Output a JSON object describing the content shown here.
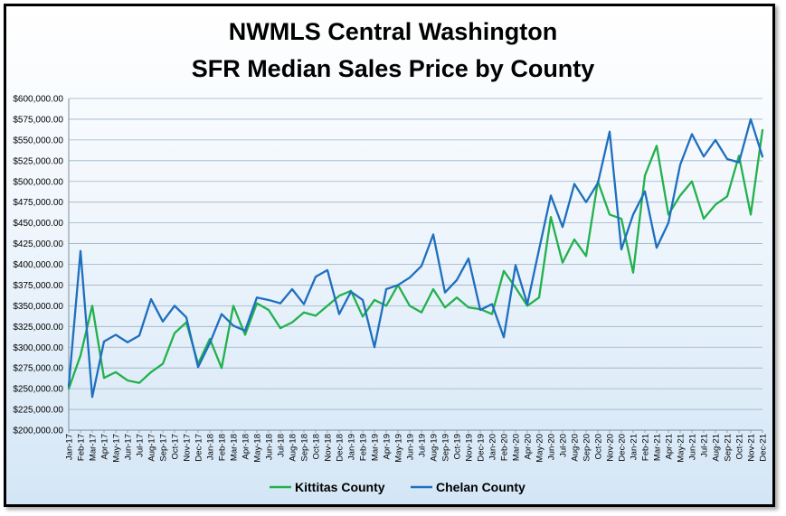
{
  "chart_data": {
    "type": "line",
    "title_lines": [
      "NWMLS Central Washington",
      "SFR Median Sales Price by County"
    ],
    "xlabel": "",
    "ylabel": "",
    "ylim": [
      200000,
      600000
    ],
    "ytick_step": 25000,
    "y_tick_labels": [
      "$200,000.00",
      "$225,000.00",
      "$250,000.00",
      "$275,000.00",
      "$300,000.00",
      "$325,000.00",
      "$350,000.00",
      "$375,000.00",
      "$400,000.00",
      "$425,000.00",
      "$450,000.00",
      "$475,000.00",
      "$500,000.00",
      "$525,000.00",
      "$550,000.00",
      "$575,000.00",
      "$600,000.00"
    ],
    "grid": "horizontal",
    "legend_position": "bottom",
    "categories": [
      "Jan-17",
      "Feb-17",
      "Mar-17",
      "Apr-17",
      "May-17",
      "Jun-17",
      "Jul-17",
      "Aug-17",
      "Sep-17",
      "Oct-17",
      "Nov-17",
      "Dec-17",
      "Jan-18",
      "Feb-18",
      "Mar-18",
      "Apr-18",
      "May-18",
      "Jun-18",
      "Jul-18",
      "Aug-18",
      "Sep-18",
      "Oct-18",
      "Nov-18",
      "Dec-18",
      "Jan-19",
      "Feb-19",
      "Mar-19",
      "Apr-19",
      "May-19",
      "Jun-19",
      "Jul-19",
      "Aug-19",
      "Sep-19",
      "Oct-19",
      "Nov-19",
      "Dec-19",
      "Jan-20",
      "Feb-20",
      "Mar-20",
      "Apr-20",
      "May-20",
      "Jun-20",
      "Jul-20",
      "Aug-20",
      "Sep-20",
      "Oct-20",
      "Nov-20",
      "Dec-20",
      "Jan-21",
      "Feb-21",
      "Mar-21",
      "Apr-21",
      "May-21",
      "Jun-21",
      "Jul-21",
      "Aug-21",
      "Sep-21",
      "Oct-21",
      "Nov-21",
      "Dec-21"
    ],
    "series": [
      {
        "name": "Kittitas County",
        "color": "#22b14c",
        "values": [
          250000,
          290000,
          350000,
          263000,
          270000,
          260000,
          257000,
          270000,
          280000,
          317000,
          330000,
          280000,
          310000,
          275000,
          350000,
          315000,
          353000,
          345000,
          323000,
          330000,
          342000,
          338000,
          350000,
          362000,
          368000,
          337000,
          357000,
          350000,
          375000,
          350000,
          342000,
          370000,
          348000,
          360000,
          348000,
          346000,
          340000,
          392000,
          372000,
          350000,
          360000,
          457000,
          402000,
          430000,
          410000,
          500000,
          460000,
          455000,
          390000,
          507000,
          543000,
          460000,
          483000,
          500000,
          455000,
          472000,
          482000,
          531000,
          460000,
          562000
        ]
      },
      {
        "name": "Chelan County",
        "color": "#1f6fbf",
        "values": [
          253000,
          416000,
          240000,
          307000,
          315000,
          306000,
          314000,
          358000,
          331000,
          350000,
          336000,
          276000,
          305000,
          340000,
          326000,
          320000,
          360000,
          357000,
          353000,
          370000,
          352000,
          385000,
          393000,
          340000,
          367000,
          357000,
          300000,
          370000,
          375000,
          384000,
          398000,
          436000,
          366000,
          381000,
          407000,
          345000,
          352000,
          312000,
          399000,
          352000,
          418000,
          483000,
          445000,
          497000,
          475000,
          498000,
          560000,
          418000,
          460000,
          488000,
          420000,
          450000,
          520000,
          557000,
          530000,
          550000,
          527000,
          523000,
          575000,
          530000
        ]
      }
    ]
  }
}
